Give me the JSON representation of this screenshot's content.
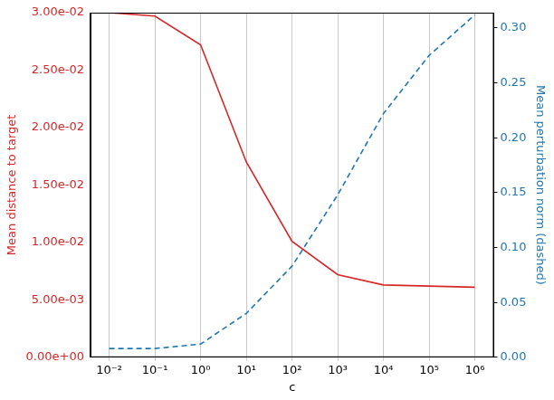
{
  "chart_data": {
    "type": "line",
    "x_label": "c",
    "y_label": "Mean distance to target",
    "y2_label": "Mean perturbation norm (dashed)",
    "log": "x",
    "grid": "x",
    "x": [
      0.01,
      0.1,
      1,
      10,
      100,
      1000,
      10000,
      100000,
      1000000
    ],
    "xlim": [
      0.0039,
      2600000
    ],
    "xticks": [
      {
        "value": 0.01,
        "label": "10⁻²"
      },
      {
        "value": 0.1,
        "label": "10⁻¹"
      },
      {
        "value": 1,
        "label": "10⁰"
      },
      {
        "value": 10,
        "label": "10¹"
      },
      {
        "value": 100,
        "label": "10²"
      },
      {
        "value": 1000,
        "label": "10³"
      },
      {
        "value": 10000,
        "label": "10⁴"
      },
      {
        "value": 100000,
        "label": "10⁵"
      },
      {
        "value": 1000000,
        "label": "10⁶"
      }
    ],
    "ylim": [
      0,
      0.03
    ],
    "yticks": [
      {
        "value": 0,
        "label": "0.00e+00"
      },
      {
        "value": 0.005,
        "label": "5.00e-03"
      },
      {
        "value": 0.01,
        "label": "1.00e-02"
      },
      {
        "value": 0.015,
        "label": "1.50e-02"
      },
      {
        "value": 0.02,
        "label": "2.00e-02"
      },
      {
        "value": 0.025,
        "label": "2.50e-02"
      },
      {
        "value": 0.03,
        "label": "3.00e-02"
      }
    ],
    "y2lim": [
      0,
      0.314
    ],
    "y2ticks": [
      {
        "value": 0,
        "label": "0.00"
      },
      {
        "value": 0.05,
        "label": "0.05"
      },
      {
        "value": 0.1,
        "label": "0.10"
      },
      {
        "value": 0.15,
        "label": "0.15"
      },
      {
        "value": 0.2,
        "label": "0.20"
      },
      {
        "value": 0.25,
        "label": "0.25"
      },
      {
        "value": 0.3,
        "label": "0.30"
      }
    ],
    "series": [
      {
        "name": "Mean distance to target",
        "color": "#d62728",
        "line_style": "solid",
        "marker": "none",
        "axis": "y",
        "values": [
          0.03,
          0.0297,
          0.0272,
          0.017,
          0.0101,
          0.0072,
          0.0063,
          0.0062,
          0.0061
        ]
      },
      {
        "name": "Mean perturbation norm (dashed)",
        "color": "#1f77b4",
        "line_style": "dashed",
        "marker": "none",
        "axis": "y2",
        "values": [
          0.008,
          0.008,
          0.012,
          0.04,
          0.083,
          0.148,
          0.222,
          0.275,
          0.312
        ]
      }
    ]
  }
}
